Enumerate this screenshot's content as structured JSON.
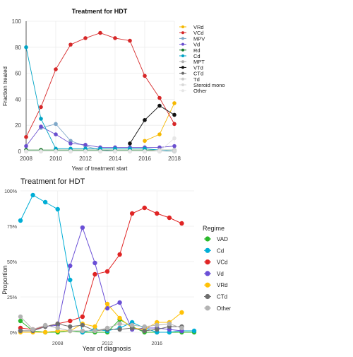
{
  "chart_data": [
    {
      "type": "line",
      "title": "Treatment for HDT",
      "xlabel": "Year of treatment start",
      "ylabel": "Fraction treated",
      "xlim": [
        2008,
        2018
      ],
      "ylim": [
        0,
        100
      ],
      "x": [
        2008,
        2009,
        2010,
        2011,
        2012,
        2013,
        2014,
        2015,
        2016,
        2017,
        2018
      ],
      "x_ticks": [
        2008,
        2010,
        2012,
        2014,
        2016,
        2018
      ],
      "y_ticks": [
        0,
        20,
        40,
        60,
        80,
        100
      ],
      "legend_position": "right",
      "grid": true,
      "series": [
        {
          "name": "VRd",
          "color": "#f5b800",
          "values": [
            null,
            null,
            null,
            null,
            null,
            null,
            null,
            null,
            8,
            13,
            37
          ]
        },
        {
          "name": "VCd",
          "color": "#d62728",
          "values": [
            11,
            34,
            63,
            82,
            87,
            91,
            87,
            85,
            58,
            41,
            21
          ]
        },
        {
          "name": "MPV",
          "color": "#7fa8c9",
          "values": [
            null,
            18,
            21,
            8,
            4,
            1,
            0,
            0,
            0,
            0,
            0
          ]
        },
        {
          "name": "Vd",
          "color": "#6a4fcf",
          "values": [
            4,
            19,
            13,
            6,
            5,
            3,
            3,
            3,
            3,
            3,
            4
          ]
        },
        {
          "name": "Rd",
          "color": "#1a7a2e",
          "values": [
            1,
            1,
            1,
            1,
            1,
            1,
            1,
            1,
            1,
            1,
            1
          ]
        },
        {
          "name": "Cd",
          "color": "#00a3c4",
          "values": [
            80,
            25,
            2,
            2,
            2,
            2,
            2,
            2,
            2,
            1,
            0
          ]
        },
        {
          "name": "MPT",
          "color": "#b0b0b0",
          "values": [
            0,
            0,
            0,
            0,
            0,
            0,
            0,
            0,
            0,
            0,
            0
          ]
        },
        {
          "name": "VTd",
          "color": "#111111",
          "values": [
            null,
            null,
            null,
            null,
            null,
            null,
            null,
            6,
            24,
            35,
            28
          ]
        },
        {
          "name": "CTd",
          "color": "#6a6a6a",
          "values": [
            0,
            0,
            0,
            0,
            0,
            0,
            0,
            0,
            0,
            0,
            0
          ]
        },
        {
          "name": "Td",
          "color": "#cccccc",
          "values": [
            0,
            0,
            0,
            0,
            0,
            0,
            0,
            0,
            0,
            1,
            1
          ]
        },
        {
          "name": "Steroid mono",
          "color": "#d9d9d9",
          "values": [
            0,
            0,
            0,
            0,
            0,
            0,
            0,
            0,
            0,
            0,
            0
          ]
        },
        {
          "name": "Other",
          "color": "#e6e6e6",
          "values": [
            0,
            0,
            0,
            0,
            0,
            0,
            0,
            0,
            0,
            0,
            10
          ]
        }
      ]
    },
    {
      "type": "line",
      "title": "Treatment for HDT",
      "xlabel": "Year of diagnosis",
      "ylabel": "Proportion",
      "xlim": [
        2005,
        2019
      ],
      "ylim": [
        0,
        100
      ],
      "x": [
        2005,
        2006,
        2007,
        2008,
        2009,
        2010,
        2011,
        2012,
        2013,
        2014,
        2015,
        2016,
        2017,
        2018,
        2019
      ],
      "x_ticks": [
        2008,
        2012,
        2016
      ],
      "y_ticks": [
        0,
        25,
        50,
        75,
        100
      ],
      "y_tick_labels": [
        "0%",
        "25%",
        "50%",
        "75%",
        "100%"
      ],
      "legend_title": "Regime",
      "legend_position": "right",
      "grid": true,
      "series": [
        {
          "name": "VAD",
          "color": "#2ab82a",
          "values": [
            8,
            1,
            0,
            0,
            1,
            0,
            0,
            0,
            9,
            4,
            0,
            0,
            0,
            0,
            0
          ]
        },
        {
          "name": "Cd",
          "color": "#00aed6",
          "values": [
            79,
            97,
            92,
            87,
            37,
            0,
            2,
            1,
            3,
            7,
            3,
            0,
            0,
            1,
            1
          ]
        },
        {
          "name": "VCd",
          "color": "#e02424",
          "values": [
            3,
            2,
            4,
            6,
            8,
            11,
            41,
            43,
            55,
            84,
            88,
            84,
            81,
            77,
            null
          ]
        },
        {
          "name": "Vd",
          "color": "#6a4fd6",
          "values": [
            1,
            1,
            4,
            5,
            47,
            74,
            49,
            17,
            21,
            2,
            3,
            3,
            2,
            1,
            null
          ]
        },
        {
          "name": "VRd",
          "color": "#ffc107",
          "values": [
            0,
            0,
            0,
            1,
            1,
            6,
            4,
            20,
            10,
            3,
            2,
            7,
            7,
            14,
            null
          ]
        },
        {
          "name": "CTd",
          "color": "#6e6e6e",
          "values": [
            1,
            1,
            4,
            6,
            4,
            5,
            1,
            2,
            2,
            3,
            1,
            2,
            4,
            4,
            null
          ]
        },
        {
          "name": "Other",
          "color": "#b3b3b3",
          "values": [
            11,
            2,
            5,
            3,
            1,
            1,
            1,
            3,
            6,
            5,
            4,
            5,
            6,
            3,
            null
          ]
        }
      ]
    }
  ]
}
